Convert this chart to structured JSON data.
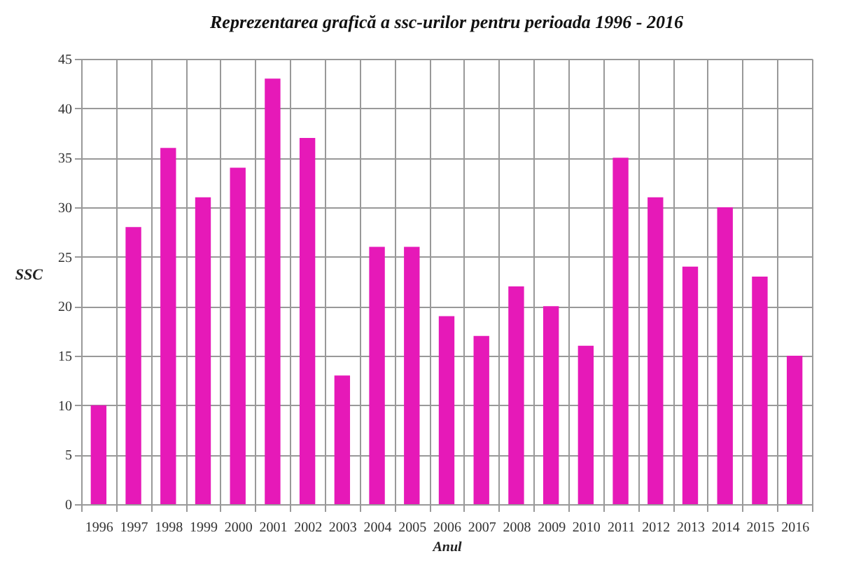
{
  "chart_data": {
    "type": "bar",
    "title": "Reprezentarea grafică a ssc-urilor pentru perioada 1996 - 2016",
    "xlabel": "Anul",
    "ylabel": "SSC",
    "categories": [
      "1996",
      "1997",
      "1998",
      "1999",
      "2000",
      "2001",
      "2002",
      "2003",
      "2004",
      "2005",
      "2006",
      "2007",
      "2008",
      "2009",
      "2010",
      "2011",
      "2012",
      "2013",
      "2014",
      "2015",
      "2016"
    ],
    "values": [
      10,
      28,
      36,
      31,
      34,
      43,
      37,
      13,
      26,
      26,
      19,
      17,
      22,
      20,
      16,
      35,
      31,
      24,
      30,
      23,
      15
    ],
    "color": "#e619b8",
    "ylim": [
      0,
      45
    ],
    "yticks": [
      0,
      5,
      10,
      15,
      20,
      25,
      30,
      35,
      40,
      45
    ],
    "grid": true
  }
}
